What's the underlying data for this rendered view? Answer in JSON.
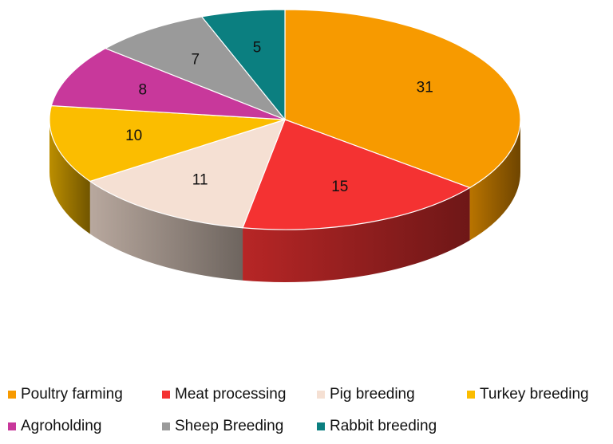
{
  "chart_data": {
    "type": "pie",
    "categories": [
      "Poultry farming",
      "Meat processing",
      "Pig breeding",
      "Turkey breeding",
      "Agroholding",
      "Sheep Breeding",
      "Rabbit breeding"
    ],
    "values": [
      31,
      15,
      11,
      10,
      8,
      7,
      5
    ],
    "colors": [
      "#f79a00",
      "#f43232",
      "#f5e0d3",
      "#fbbd00",
      "#c8389b",
      "#9a9a9a",
      "#0b7f80"
    ],
    "legend": "bottom"
  }
}
